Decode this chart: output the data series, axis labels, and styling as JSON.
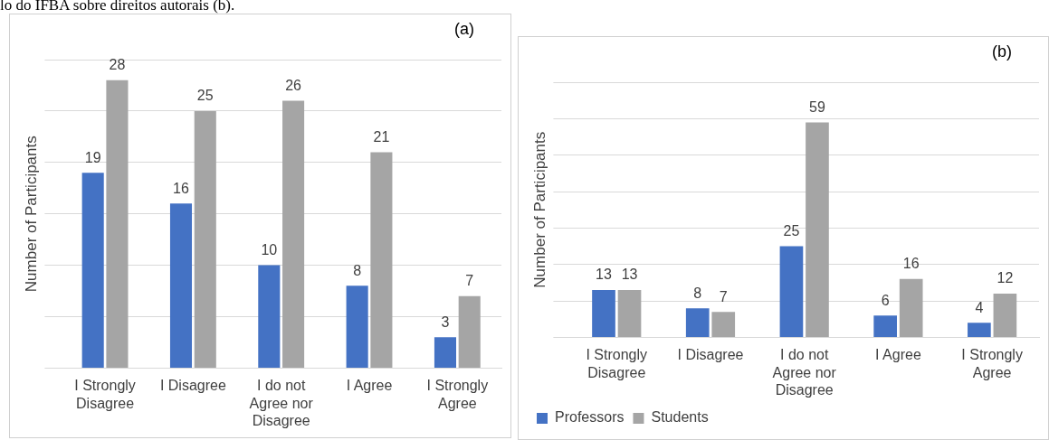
{
  "chart_data": [
    {
      "type": "bar",
      "title": "lo do IFBA sobre direitos autorais (b).",
      "ylabel": "Number of Participants",
      "categories": [
        "I Strongly Disagree",
        "I Disagree",
        "I do not Agree nor Disagree",
        "I Agree",
        "I Strongly Agree"
      ],
      "series": [
        {
          "color": "#4472c4",
          "values": [
            19,
            16,
            10,
            8,
            3
          ]
        },
        {
          "color": "#a5a5a5",
          "values": [
            28,
            25,
            26,
            21,
            7
          ]
        }
      ],
      "ylim": [
        0,
        30
      ],
      "yticks": [
        {
          "value": 0,
          "label": null
        },
        {
          "value": 5,
          "label": null
        },
        {
          "value": 10,
          "label": null
        },
        {
          "value": 15,
          "label": null
        },
        {
          "value": 20,
          "label": null
        },
        {
          "value": 25,
          "label": null
        },
        {
          "value": 30,
          "label": null
        }
      ],
      "tick_labels": "x",
      "grid": "y",
      "data_labels": true,
      "legend": false,
      "annotations": [
        "(a)"
      ]
    },
    {
      "type": "bar",
      "ylabel": "Number of Participants",
      "categories": [
        "I Strongly Disagree",
        "I Disagree",
        "I do not Agree nor Disagree",
        "I Agree",
        "I Strongly Agree"
      ],
      "series": [
        {
          "name": "Professors",
          "color": "#4472c4",
          "values": [
            13,
            8,
            25,
            6,
            4
          ]
        },
        {
          "name": "Students",
          "color": "#a5a5a5",
          "values": [
            13,
            7,
            59,
            16,
            12
          ]
        }
      ],
      "ylim": [
        0,
        70
      ],
      "yticks": [
        {
          "value": 0,
          "label": null
        },
        {
          "value": 10,
          "label": null
        },
        {
          "value": 20,
          "label": null
        },
        {
          "value": 30,
          "label": null
        },
        {
          "value": 40,
          "label": null
        },
        {
          "value": 50,
          "label": null
        },
        {
          "value": 60,
          "label": null
        },
        {
          "value": 70,
          "label": null
        }
      ],
      "tick_labels": "x",
      "grid": "y",
      "data_labels": true,
      "legend": "bottom left",
      "annotations": [
        "(b)"
      ]
    }
  ]
}
